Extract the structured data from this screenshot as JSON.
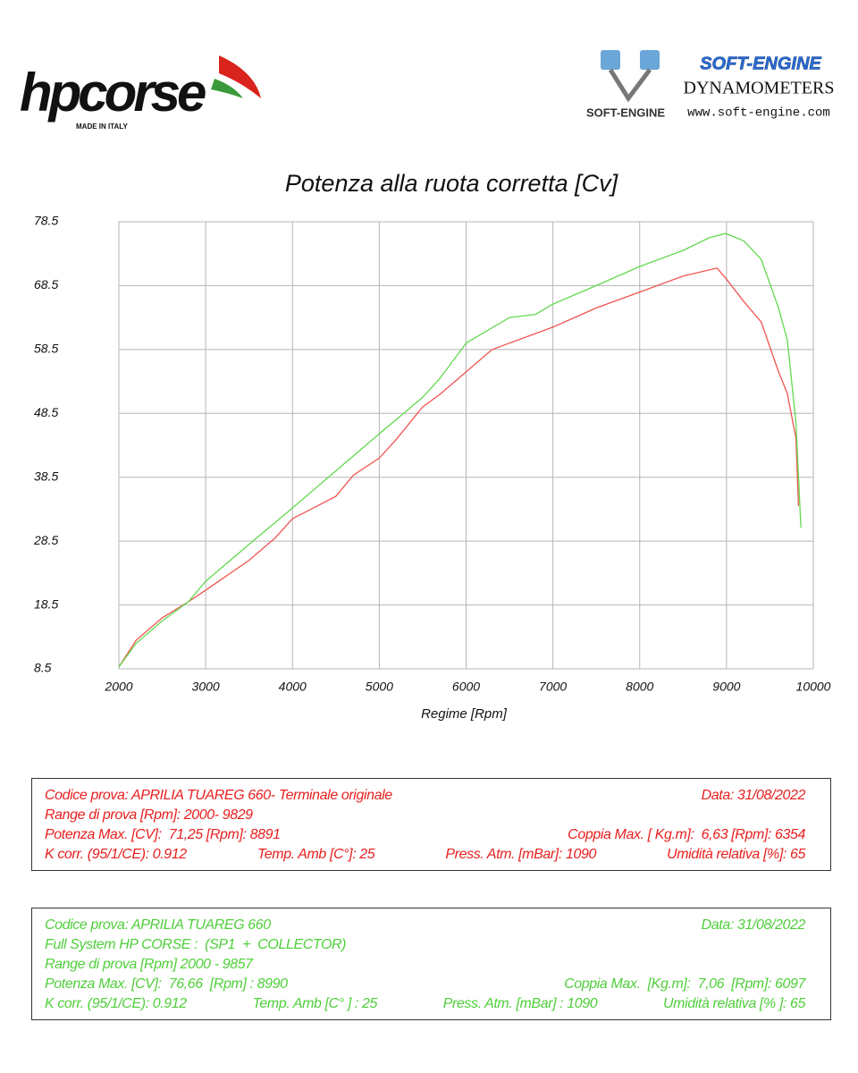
{
  "header": {
    "left_logo": "hpcorse",
    "left_tagline": "MADE IN ITALY",
    "right_logo_small": "SOFT-ENGINE",
    "right_brand": "SOFT-ENGINE",
    "right_subtitle": "DYNAMOMETERS",
    "right_url": "www.soft-engine.com"
  },
  "chart_data": {
    "type": "line",
    "title": "Potenza alla ruota corretta [Cv]",
    "x_label": "Regime [Rpm]",
    "xlim": [
      2000,
      10000
    ],
    "xticks": [
      2000,
      3000,
      4000,
      5000,
      6000,
      7000,
      8000,
      9000,
      10000
    ],
    "ylim": [
      8.5,
      78.5
    ],
    "yticks": [
      8.5,
      18.5,
      28.5,
      38.5,
      48.5,
      58.5,
      68.5,
      78.5
    ],
    "grid": true,
    "series": [
      {
        "color": "#f0544f",
        "x": [
          2000,
          2200,
          2500,
          2800,
          3000,
          3500,
          3800,
          4000,
          4500,
          4700,
          5000,
          5200,
          5500,
          5700,
          6000,
          6300,
          6500,
          7000,
          7500,
          8000,
          8500,
          8891,
          9000,
          9200,
          9400,
          9600,
          9700,
          9800,
          9829
        ],
        "values": [
          8.8,
          13,
          16.5,
          19,
          20.8,
          25.5,
          29,
          32,
          35.5,
          38.8,
          41.5,
          44.5,
          49.5,
          51.5,
          55,
          58.5,
          59.5,
          62,
          65,
          67.5,
          70,
          71.25,
          69.5,
          66,
          62.8,
          55,
          51.6,
          44.6,
          34
        ]
      },
      {
        "color": "#62d94e",
        "x": [
          2000,
          2200,
          2500,
          2800,
          3000,
          3500,
          4000,
          4500,
          5000,
          5500,
          5700,
          6000,
          6500,
          6800,
          7000,
          7500,
          8000,
          8500,
          8800,
          8990,
          9200,
          9400,
          9600,
          9700,
          9800,
          9857
        ],
        "values": [
          8.8,
          12.5,
          16,
          19,
          22.2,
          28,
          33.7,
          39.5,
          45.3,
          51,
          54,
          59.5,
          63.5,
          64,
          65.6,
          68.5,
          71.5,
          74,
          76,
          76.66,
          75.5,
          72.6,
          65,
          60,
          47,
          30.6
        ]
      }
    ]
  },
  "info_boxes": [
    {
      "color": "#e8201f",
      "rows": [
        [
          "Codice prova: APRILIA TUAREG 660- Terminale originale",
          "Data: 31/08/2022"
        ],
        [
          "Range di prova [Rpm]: 2000- 9829"
        ],
        [
          "Potenza Max. [CV]:  71,25 [Rpm]: 8891",
          "Coppia Max. [ Kg.m]:  6,63 [Rpm]: 6354"
        ],
        [
          "K corr. (95/1/CE): 0.912",
          "Temp. Amb [C°]: 25",
          "Press. Atm. [mBar]: 1090",
          "Umidità relativa [%]: 65"
        ]
      ]
    },
    {
      "color": "#4fcf3a",
      "rows": [
        [
          "Codice prova: APRILIA TUAREG 660",
          "Data: 31/08/2022"
        ],
        [
          "Full System HP CORSE :  (SP1  +  COLLECTOR)"
        ],
        [
          "Range di prova [Rpm] 2000 - 9857"
        ],
        [
          "Potenza Max. [CV]:  76,66  [Rpm] : 8990",
          "Coppia Max.  [Kg.m]:  7,06  [Rpm]: 6097"
        ],
        [
          "K corr. (95/1/CE): 0.912",
          "Temp. Amb [C° ] : 25",
          "Press. Atm. [mBar] : 1090",
          "Umidità relativa [% ]: 65"
        ]
      ]
    }
  ]
}
